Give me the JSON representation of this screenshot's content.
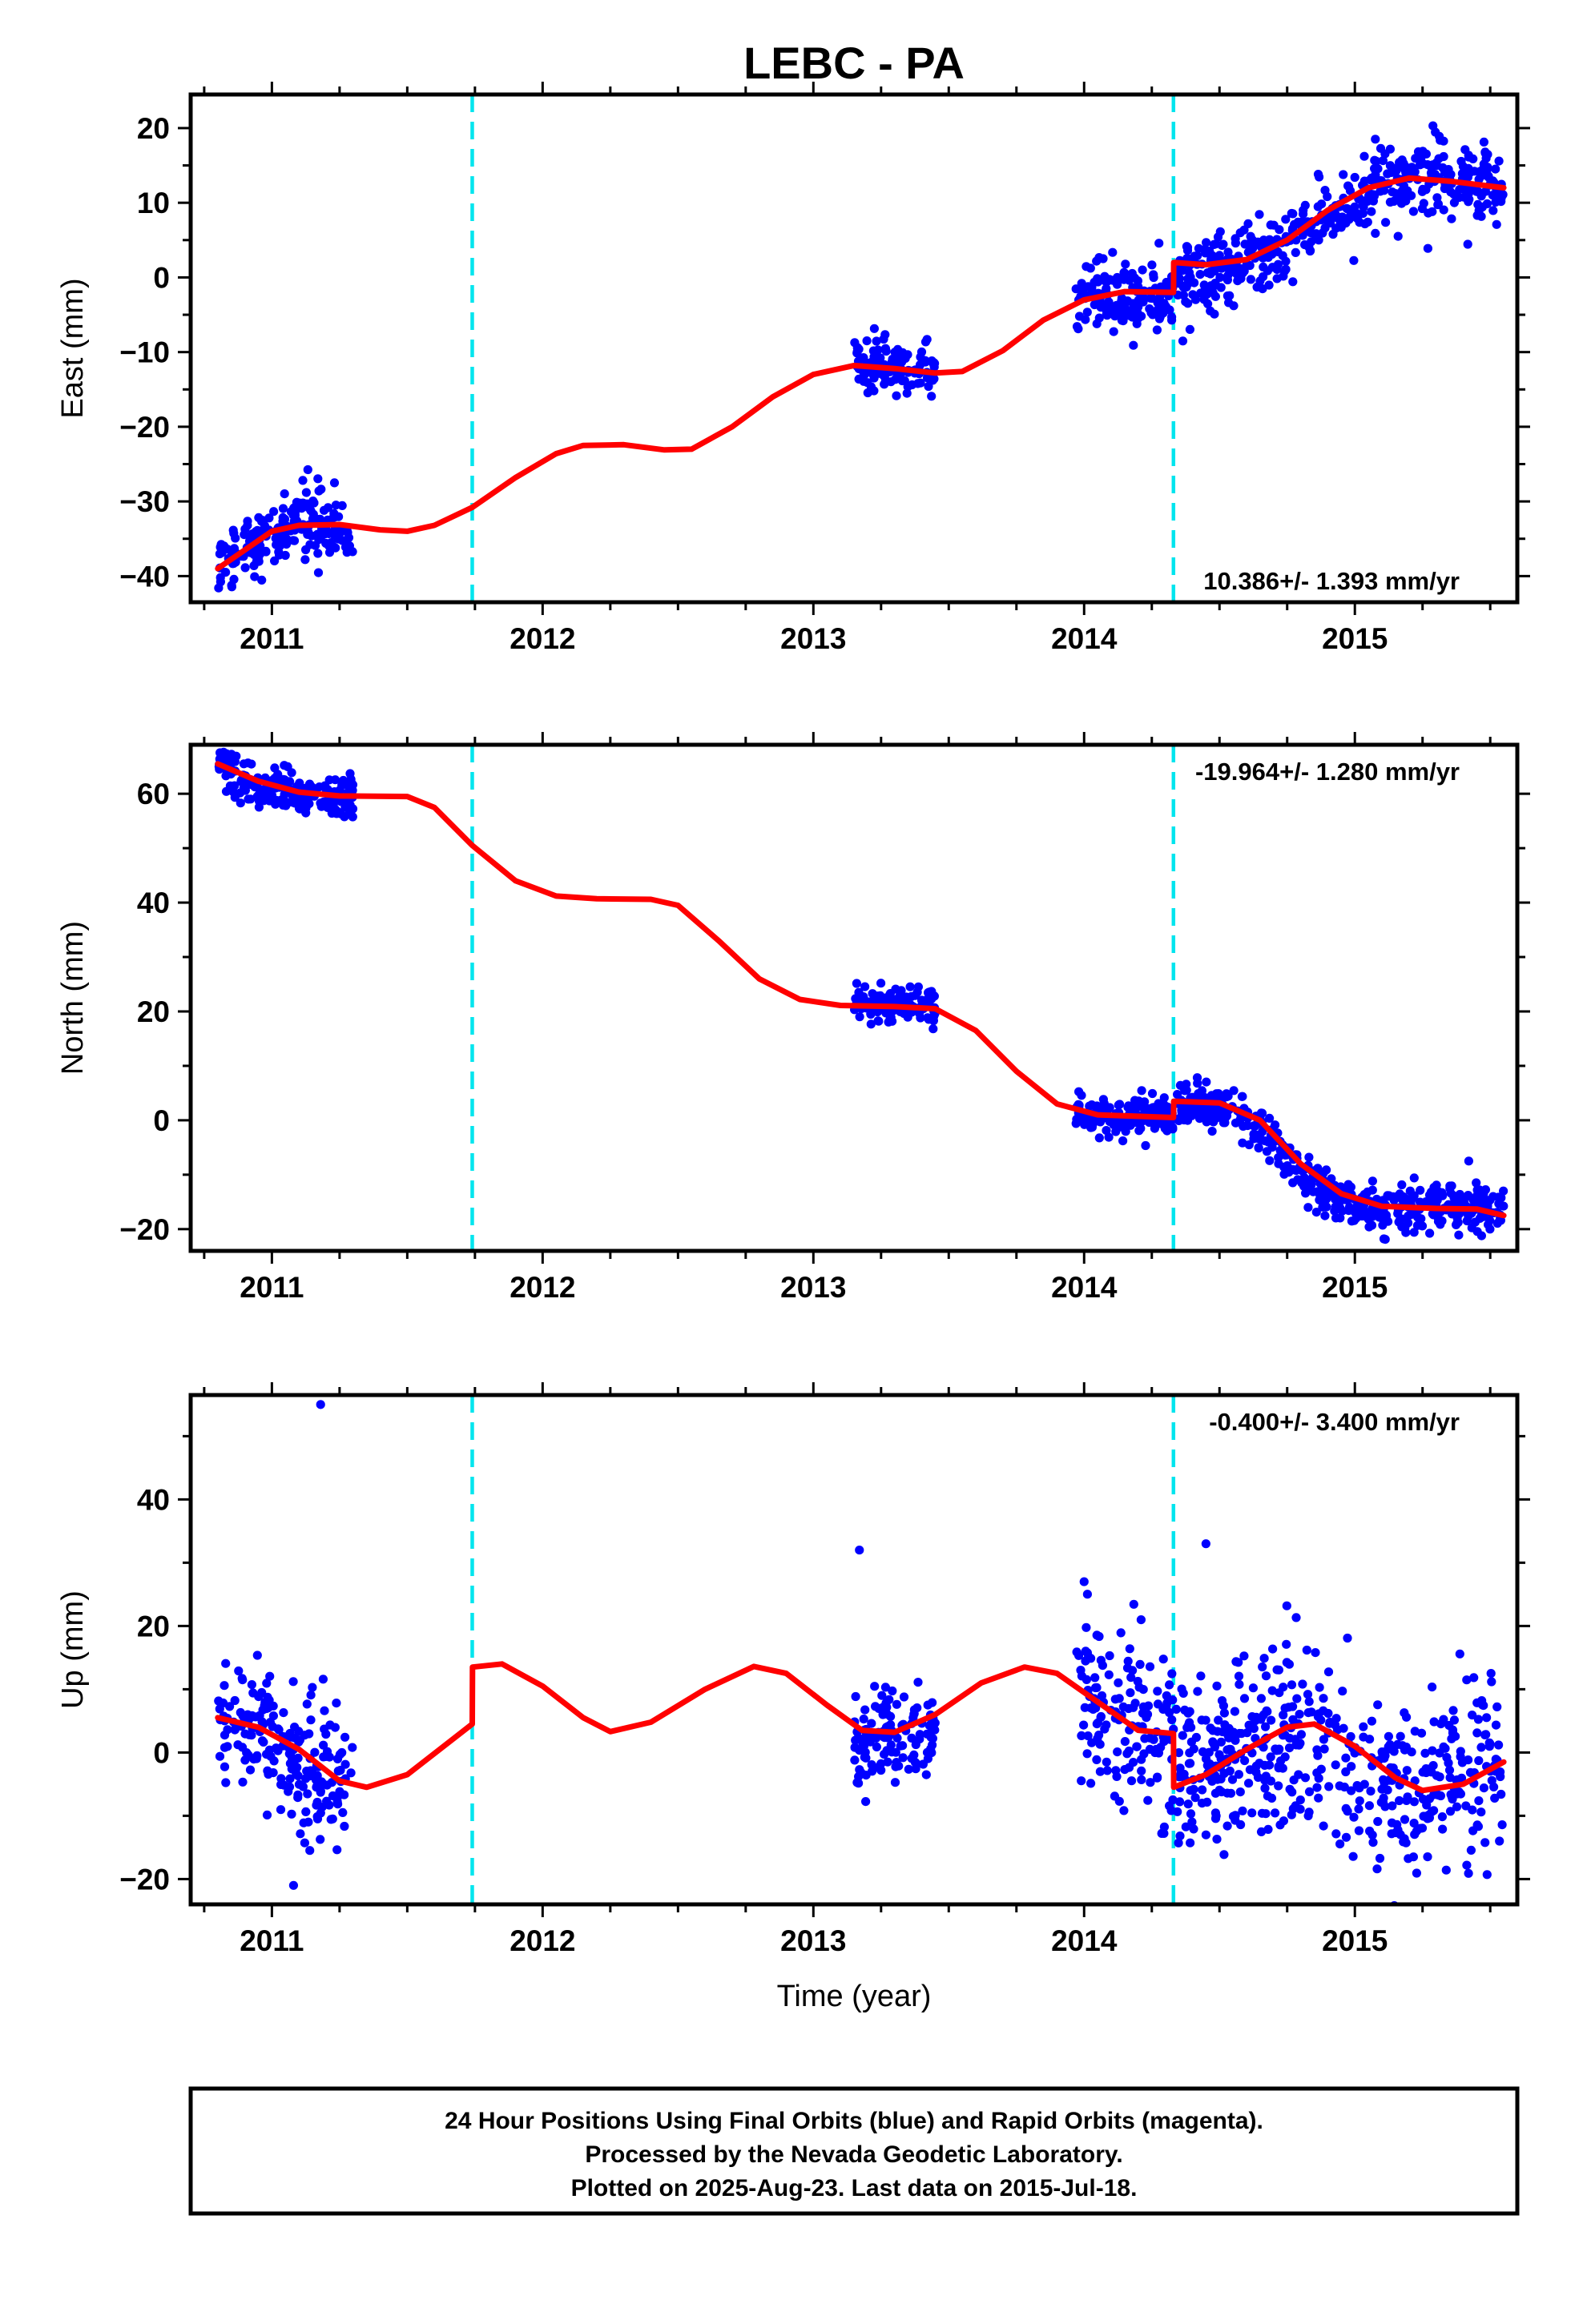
{
  "chart_data": {
    "title": "LEBC - PA",
    "xlabel": "Time (year)",
    "x_range": [
      2010.7,
      2015.6
    ],
    "x_ticks": [
      2011,
      2012,
      2013,
      2014,
      2015
    ],
    "type": "scatter",
    "colors": {
      "data_points": "#0000ff",
      "model_fit": "#ff0000",
      "offset_lines": "#00e5ee",
      "frame": "#000000"
    },
    "offset_epochs": [
      2011.74,
      2014.33
    ],
    "panels": [
      {
        "name": "east",
        "ylabel": "East (mm)",
        "ylim": [
          -43.5,
          24.5
        ],
        "y_ticks": [
          20,
          10,
          0,
          -10,
          -20,
          -30,
          -40
        ],
        "rate_label": "10.386+/- 1.393 mm/yr",
        "rate_position": "bottom-right",
        "data_segments": [
          {
            "start": 2010.8,
            "end": 2011.3,
            "mean": [
              [
                2010.8,
                -38.5
              ],
              [
                2010.95,
                -35.5
              ],
              [
                2011.1,
                -32.5
              ],
              [
                2011.2,
                -32.5
              ],
              [
                2011.3,
                -35.0
              ]
            ],
            "scatter": 2.2
          },
          {
            "start": 2013.15,
            "end": 2013.45,
            "mean": [
              [
                2013.15,
                -11.5
              ],
              [
                2013.3,
                -12.0
              ],
              [
                2013.45,
                -12.5
              ]
            ],
            "scatter": 1.6
          },
          {
            "start": 2013.97,
            "end": 2014.33,
            "mean": [
              [
                2013.97,
                -2.0
              ],
              [
                2014.15,
                -3.0
              ],
              [
                2014.33,
                -2.5
              ]
            ],
            "scatter": 2.3
          },
          {
            "start": 2014.34,
            "end": 2015.55,
            "mean": [
              [
                2014.34,
                0.5
              ],
              [
                2014.55,
                1.5
              ],
              [
                2014.7,
                4.0
              ],
              [
                2014.9,
                8.5
              ],
              [
                2015.1,
                12.0
              ],
              [
                2015.3,
                13.5
              ],
              [
                2015.55,
                12.0
              ]
            ],
            "scatter": 2.6
          }
        ],
        "model_curve": [
          [
            2010.8,
            -39.0
          ],
          [
            2010.9,
            -36.5
          ],
          [
            2011.0,
            -34.0
          ],
          [
            2011.1,
            -33.2
          ],
          [
            2011.25,
            -33.1
          ],
          [
            2011.4,
            -33.8
          ],
          [
            2011.5,
            -34.0
          ],
          [
            2011.6,
            -33.2
          ],
          [
            2011.74,
            -30.8
          ],
          [
            2011.9,
            -26.8
          ],
          [
            2012.05,
            -23.6
          ],
          [
            2012.15,
            -22.5
          ],
          [
            2012.3,
            -22.4
          ],
          [
            2012.45,
            -23.1
          ],
          [
            2012.55,
            -23.0
          ],
          [
            2012.7,
            -20.0
          ],
          [
            2012.85,
            -16.0
          ],
          [
            2013.0,
            -13.0
          ],
          [
            2013.15,
            -11.8
          ],
          [
            2013.3,
            -12.2
          ],
          [
            2013.45,
            -12.8
          ],
          [
            2013.55,
            -12.6
          ],
          [
            2013.7,
            -9.8
          ],
          [
            2013.85,
            -5.7
          ],
          [
            2014.0,
            -3.0
          ],
          [
            2014.15,
            -1.9
          ],
          [
            2014.33,
            -2.0
          ],
          [
            2014.331,
            2.0
          ],
          [
            2014.45,
            1.7
          ],
          [
            2014.6,
            2.4
          ],
          [
            2014.75,
            5.0
          ],
          [
            2014.9,
            9.0
          ],
          [
            2015.05,
            12.0
          ],
          [
            2015.2,
            13.3
          ],
          [
            2015.35,
            12.9
          ],
          [
            2015.55,
            12.0
          ]
        ]
      },
      {
        "name": "north",
        "ylabel": "North (mm)",
        "ylim": [
          -24,
          69
        ],
        "y_ticks": [
          60,
          40,
          20,
          0,
          -20
        ],
        "rate_label": "-19.964+/- 1.280 mm/yr",
        "rate_position": "top-right",
        "data_segments": [
          {
            "start": 2010.8,
            "end": 2011.3,
            "mean": [
              [
                2010.8,
                64.5
              ],
              [
                2010.95,
                61.5
              ],
              [
                2011.1,
                60.0
              ],
              [
                2011.3,
                59.5
              ]
            ],
            "scatter": 1.8
          },
          {
            "start": 2013.15,
            "end": 2013.45,
            "mean": [
              [
                2013.15,
                21.0
              ],
              [
                2013.3,
                21.0
              ],
              [
                2013.45,
                21.0
              ]
            ],
            "scatter": 1.5
          },
          {
            "start": 2013.97,
            "end": 2014.33,
            "mean": [
              [
                2013.97,
                0.5
              ],
              [
                2014.15,
                0.8
              ],
              [
                2014.33,
                1.0
              ]
            ],
            "scatter": 1.9
          },
          {
            "start": 2014.34,
            "end": 2015.55,
            "mean": [
              [
                2014.34,
                3.0
              ],
              [
                2014.55,
                2.0
              ],
              [
                2014.7,
                -4.0
              ],
              [
                2014.85,
                -12.0
              ],
              [
                2015.0,
                -16.0
              ],
              [
                2015.3,
                -16.0
              ],
              [
                2015.55,
                -17.0
              ]
            ],
            "scatter": 2.1
          }
        ],
        "model_curve": [
          [
            2010.8,
            65.5
          ],
          [
            2010.95,
            62.3
          ],
          [
            2011.1,
            60.3
          ],
          [
            2011.25,
            59.6
          ],
          [
            2011.5,
            59.5
          ],
          [
            2011.6,
            57.5
          ],
          [
            2011.74,
            50.5
          ],
          [
            2011.9,
            44.0
          ],
          [
            2012.05,
            41.2
          ],
          [
            2012.2,
            40.7
          ],
          [
            2012.4,
            40.6
          ],
          [
            2012.5,
            39.5
          ],
          [
            2012.65,
            33.0
          ],
          [
            2012.8,
            26.0
          ],
          [
            2012.95,
            22.2
          ],
          [
            2013.1,
            21.1
          ],
          [
            2013.3,
            20.9
          ],
          [
            2013.45,
            20.5
          ],
          [
            2013.6,
            16.5
          ],
          [
            2013.75,
            9.0
          ],
          [
            2013.9,
            3.0
          ],
          [
            2014.05,
            1.0
          ],
          [
            2014.33,
            0.5
          ],
          [
            2014.331,
            3.5
          ],
          [
            2014.5,
            3.2
          ],
          [
            2014.65,
            0.0
          ],
          [
            2014.8,
            -8.0
          ],
          [
            2014.95,
            -13.5
          ],
          [
            2015.1,
            -15.8
          ],
          [
            2015.3,
            -16.2
          ],
          [
            2015.45,
            -16.3
          ],
          [
            2015.55,
            -17.5
          ]
        ]
      },
      {
        "name": "up",
        "ylabel": "Up (mm)",
        "ylim": [
          -24,
          56.5
        ],
        "y_ticks": [
          40,
          20,
          0,
          -20
        ],
        "rate_label": "-0.400+/- 3.400 mm/yr",
        "rate_position": "top-right",
        "data_segments": [
          {
            "start": 2010.8,
            "end": 2011.3,
            "mean": [
              [
                2010.8,
                5.0
              ],
              [
                2010.95,
                4.0
              ],
              [
                2011.1,
                -1.0
              ],
              [
                2011.3,
                -5.5
              ]
            ],
            "scatter": 5.0
          },
          {
            "start": 2013.15,
            "end": 2013.45,
            "mean": [
              [
                2013.15,
                2.0
              ],
              [
                2013.3,
                3.0
              ],
              [
                2013.45,
                4.0
              ]
            ],
            "scatter": 4.0
          },
          {
            "start": 2013.97,
            "end": 2014.33,
            "mean": [
              [
                2013.97,
                10.0
              ],
              [
                2014.15,
                5.0
              ],
              [
                2014.33,
                3.0
              ]
            ],
            "scatter": 7.0
          },
          {
            "start": 2014.34,
            "end": 2015.55,
            "mean": [
              [
                2014.34,
                -4.0
              ],
              [
                2014.55,
                0.0
              ],
              [
                2014.8,
                4.0
              ],
              [
                2015.0,
                -2.0
              ],
              [
                2015.2,
                -7.0
              ],
              [
                2015.55,
                -2.0
              ]
            ],
            "scatter": 7.0
          }
        ],
        "outliers": [
          [
            2011.18,
            55.0
          ],
          [
            2013.17,
            32.0
          ],
          [
            2014.45,
            33.0
          ],
          [
            2014.0,
            27.0
          ],
          [
            2011.08,
            -21.0
          ]
        ],
        "model_curve": [
          [
            2010.8,
            5.5
          ],
          [
            2010.95,
            4.0
          ],
          [
            2011.1,
            0.5
          ],
          [
            2011.25,
            -4.5
          ],
          [
            2011.35,
            -5.5
          ],
          [
            2011.5,
            -3.5
          ],
          [
            2011.65,
            1.5
          ],
          [
            2011.74,
            4.5
          ],
          [
            2011.741,
            13.5
          ],
          [
            2011.85,
            14.0
          ],
          [
            2012.0,
            10.5
          ],
          [
            2012.15,
            5.5
          ],
          [
            2012.25,
            3.3
          ],
          [
            2012.4,
            4.8
          ],
          [
            2012.6,
            10.0
          ],
          [
            2012.78,
            13.6
          ],
          [
            2012.9,
            12.5
          ],
          [
            2013.05,
            7.5
          ],
          [
            2013.18,
            3.5
          ],
          [
            2013.3,
            3.2
          ],
          [
            2013.45,
            6.0
          ],
          [
            2013.62,
            11.0
          ],
          [
            2013.78,
            13.5
          ],
          [
            2013.9,
            12.5
          ],
          [
            2014.05,
            8.0
          ],
          [
            2014.2,
            3.5
          ],
          [
            2014.33,
            3.0
          ],
          [
            2014.331,
            -5.5
          ],
          [
            2014.45,
            -3.5
          ],
          [
            2014.6,
            0.5
          ],
          [
            2014.75,
            4.0
          ],
          [
            2014.85,
            4.5
          ],
          [
            2015.0,
            1.0
          ],
          [
            2015.15,
            -4.0
          ],
          [
            2015.25,
            -6.0
          ],
          [
            2015.4,
            -5.0
          ],
          [
            2015.55,
            -1.5
          ]
        ]
      }
    ]
  },
  "footer": {
    "line1": "24 Hour Positions Using Final Orbits (blue) and Rapid Orbits (magenta).",
    "line2": "Processed by the Nevada Geodetic Laboratory.",
    "line3": "Plotted on 2025-Aug-23. Last data on 2015-Jul-18."
  }
}
